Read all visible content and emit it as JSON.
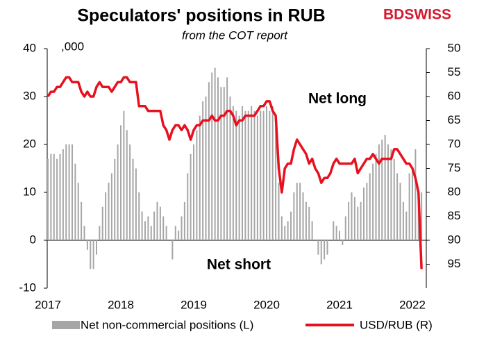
{
  "chart_data": {
    "type": "bar_line",
    "title": "Speculators' positions in RUB",
    "subtitle": "from the COT report",
    "logo": "BDSWISS",
    "y_unit_label": ",000",
    "annotations": [
      "Net long",
      "Net short"
    ],
    "categories": [
      "2017",
      null,
      null,
      null,
      null,
      null,
      null,
      null,
      null,
      null,
      null,
      null,
      null,
      null,
      null,
      null,
      null,
      null,
      null,
      null,
      null,
      null,
      null,
      null,
      "2018",
      null,
      null,
      null,
      null,
      null,
      null,
      null,
      null,
      null,
      null,
      null,
      null,
      null,
      null,
      null,
      null,
      null,
      null,
      null,
      null,
      null,
      null,
      null,
      "2019",
      null,
      null,
      null,
      null,
      null,
      null,
      null,
      null,
      null,
      null,
      null,
      null,
      null,
      null,
      null,
      null,
      null,
      null,
      null,
      null,
      null,
      null,
      null,
      "2020",
      null,
      null,
      null,
      null,
      null,
      null,
      null,
      null,
      null,
      null,
      null,
      null,
      null,
      null,
      null,
      null,
      null,
      null,
      null,
      null,
      null,
      null,
      null,
      "2021",
      null,
      null,
      null,
      null,
      null,
      null,
      null,
      null,
      null,
      null,
      null,
      null,
      null,
      null,
      null,
      null,
      null,
      null,
      null,
      null,
      null,
      null,
      null,
      "2022",
      null,
      null,
      null
    ],
    "series": [
      {
        "name": "Net non-commercial positions (L)",
        "color": "#a6a6a6",
        "kind": "bar",
        "values": [
          17,
          18,
          18,
          17,
          18,
          19,
          20,
          20,
          20,
          16,
          12,
          8,
          3,
          -2,
          -6,
          -6,
          -3,
          3,
          7,
          10,
          12,
          14,
          17,
          20,
          24,
          27,
          23,
          20,
          17,
          15,
          10,
          6,
          4,
          5,
          3,
          6,
          8,
          7,
          5,
          3,
          0,
          -4,
          3,
          2,
          5,
          8,
          14,
          18,
          20,
          23,
          26,
          29,
          30,
          33,
          35,
          36,
          34,
          32,
          32,
          34,
          30,
          28,
          27,
          26,
          28,
          27,
          27,
          28,
          27,
          26,
          27,
          27,
          28,
          27,
          28,
          24,
          12,
          5,
          3,
          4,
          6,
          10,
          12,
          12,
          10,
          8,
          7,
          4,
          0,
          -3,
          -5,
          -4,
          -3,
          0,
          4,
          3,
          2,
          -1,
          5,
          8,
          10,
          9,
          7,
          8,
          11,
          12,
          14,
          16,
          18,
          20,
          21,
          22,
          20,
          19,
          17,
          14,
          12,
          8,
          6,
          14,
          15,
          19,
          8,
          10
        ]
      },
      {
        "name": "USD/RUB (R)",
        "color": "#e8101e",
        "kind": "line",
        "axis": "y2",
        "values": [
          60,
          59,
          59,
          58,
          58,
          57,
          56,
          56,
          57,
          57,
          57,
          59,
          60,
          59,
          60,
          60,
          58,
          57,
          58,
          58,
          58,
          59,
          58,
          57,
          57,
          56,
          56,
          57,
          57,
          57,
          62,
          62,
          62,
          63,
          63,
          63,
          63,
          63,
          66,
          67,
          69,
          67,
          66,
          66,
          67,
          66,
          67,
          69,
          67,
          66,
          66,
          65,
          65,
          65,
          64,
          65,
          65,
          64,
          64,
          63,
          63,
          64,
          66,
          65,
          65,
          64,
          64,
          64,
          64,
          63,
          62,
          62,
          61,
          61,
          63,
          64,
          75,
          80,
          75,
          74,
          74,
          71,
          69,
          70,
          71,
          72,
          74,
          73,
          75,
          76,
          78,
          77,
          77,
          76,
          74,
          73,
          74,
          74,
          74,
          74,
          74,
          73,
          76,
          75,
          74,
          73,
          73,
          72,
          73,
          74,
          73,
          73,
          73,
          73,
          71,
          71,
          72,
          73,
          74,
          74,
          75,
          77,
          80,
          96
        ]
      }
    ],
    "ylim": [
      -10,
      40
    ],
    "yticks": [
      -10,
      0,
      10,
      20,
      30,
      40
    ],
    "y2lim": [
      50,
      100
    ],
    "y2ticks": [
      50,
      55,
      60,
      65,
      70,
      75,
      80,
      85,
      90,
      95
    ],
    "y2_reversed": true
  }
}
